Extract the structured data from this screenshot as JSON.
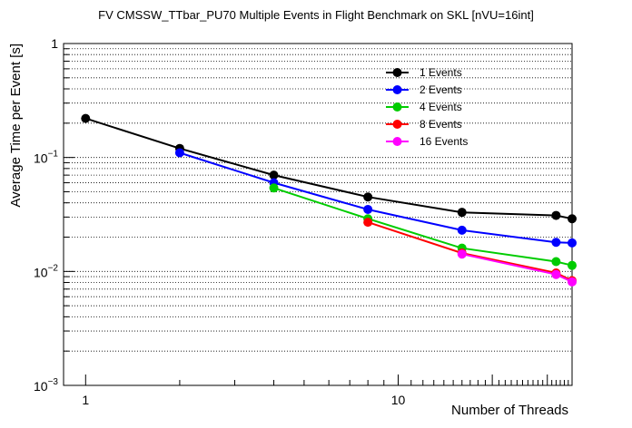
{
  "chart_data": {
    "type": "line",
    "title": "FV CMSSW_TTbar_PU70 Multiple Events in Flight Benchmark on SKL [nVU=16int]",
    "xlabel": "Number of Threads",
    "ylabel": "Average Time per Event [s]",
    "x_scale": "log",
    "y_scale": "log",
    "xlim": [
      0.85,
      36
    ],
    "ylim": [
      0.001,
      1
    ],
    "grid": "horizontal dotted (y only)",
    "legend_position": "top-right",
    "x_tick_labels": [
      {
        "value": 1,
        "label": "1"
      },
      {
        "value": 10,
        "label": "10"
      }
    ],
    "y_tick_labels": [
      {
        "value": 1,
        "base": "1",
        "exp": ""
      },
      {
        "value": 0.1,
        "base": "10",
        "exp": "−1"
      },
      {
        "value": 0.01,
        "base": "10",
        "exp": "−2"
      },
      {
        "value": 0.001,
        "base": "10",
        "exp": "−3"
      }
    ],
    "series": [
      {
        "name": "1 Events",
        "color": "#000000",
        "x": [
          1,
          2,
          4,
          8,
          16,
          32,
          36
        ],
        "y": [
          0.22,
          0.12,
          0.07,
          0.045,
          0.033,
          0.031,
          0.029
        ]
      },
      {
        "name": "2 Events",
        "color": "#0000ff",
        "x": [
          2,
          4,
          8,
          16,
          32,
          36
        ],
        "y": [
          0.11,
          0.06,
          0.035,
          0.023,
          0.018,
          0.0178
        ]
      },
      {
        "name": "4 Events",
        "color": "#00cc00",
        "x": [
          4,
          8,
          16,
          32,
          36
        ],
        "y": [
          0.054,
          0.029,
          0.016,
          0.0122,
          0.0113
        ]
      },
      {
        "name": "8 Events",
        "color": "#ff0000",
        "x": [
          8,
          16,
          32,
          36
        ],
        "y": [
          0.027,
          0.0145,
          0.0097,
          0.0083
        ]
      },
      {
        "name": "16 Events",
        "color": "#ff00ff",
        "x": [
          16,
          32,
          36
        ],
        "y": [
          0.0142,
          0.0094,
          0.0081
        ]
      }
    ]
  }
}
